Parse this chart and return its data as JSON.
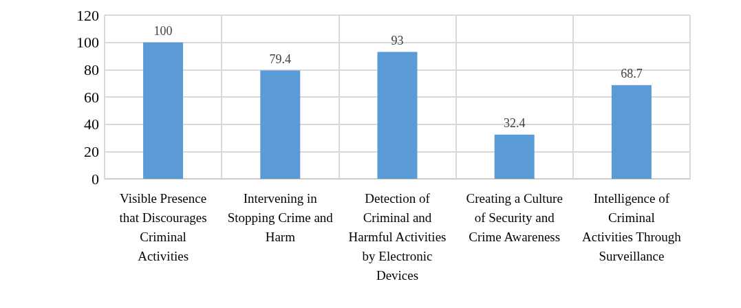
{
  "chart_data": {
    "type": "bar",
    "categories": [
      "Visible Presence that Discourages Criminal Activities",
      "Intervening in Stopping Crime and Harm",
      "Detection of Criminal and Harmful Activities by Electronic Devices",
      "Creating a Culture of Security and Crime Awareness",
      "Intelligence of Criminal Activities Through Surveillance"
    ],
    "values": [
      100,
      79.4,
      93,
      32.4,
      68.7
    ],
    "color": "#5b9bd5",
    "ylim": [
      0,
      120
    ],
    "yticks": [
      0,
      20,
      40,
      60,
      80,
      100,
      120
    ],
    "grid": true,
    "data_labels": true
  }
}
